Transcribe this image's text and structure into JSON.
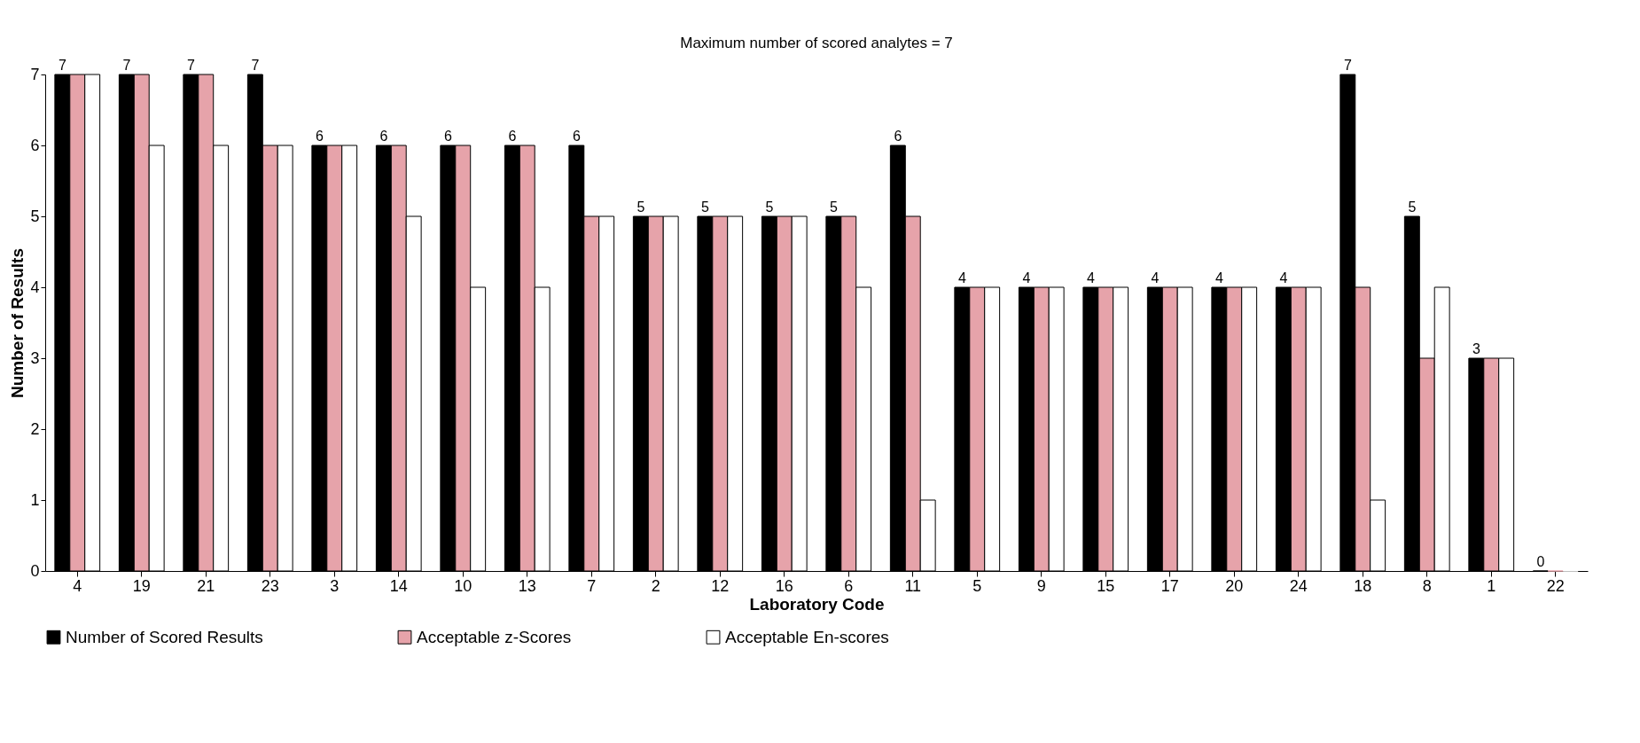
{
  "chart_data": {
    "type": "bar",
    "xlabel": "Laboratory Code",
    "ylabel": "Number of Results",
    "annotations": [
      "Maximum number of scored analytes = 7"
    ],
    "categories": [
      "4",
      "19",
      "21",
      "23",
      "3",
      "14",
      "10",
      "13",
      "7",
      "2",
      "12",
      "16",
      "6",
      "11",
      "5",
      "9",
      "15",
      "17",
      "20",
      "24",
      "18",
      "8",
      "1",
      "22"
    ],
    "series": [
      {
        "name": "Number of Scored Results",
        "color": "#000000",
        "values": [
          7,
          7,
          7,
          7,
          6,
          6,
          6,
          6,
          6,
          5,
          5,
          5,
          5,
          6,
          4,
          4,
          4,
          4,
          4,
          4,
          7,
          5,
          3,
          0
        ],
        "value_labels": [
          "7",
          "7",
          "7",
          "7",
          "6",
          "6",
          "6",
          "6",
          "6",
          "5",
          "5",
          "5",
          "5",
          "6",
          "4",
          "4",
          "4",
          "4",
          "4",
          "4",
          "7",
          "5",
          "3",
          "0"
        ]
      },
      {
        "name": "Acceptable z-Scores",
        "color": "#e6a3aa",
        "values": [
          7,
          7,
          7,
          6,
          6,
          6,
          6,
          6,
          5,
          5,
          5,
          5,
          5,
          5,
          4,
          4,
          4,
          4,
          4,
          4,
          4,
          3,
          3,
          0
        ]
      },
      {
        "name": "Acceptable En-scores",
        "color": "#ffffff",
        "values": [
          7,
          6,
          6,
          6,
          6,
          5,
          4,
          4,
          5,
          5,
          5,
          5,
          4,
          1,
          4,
          4,
          4,
          4,
          4,
          4,
          1,
          4,
          3,
          0
        ]
      }
    ],
    "ylim": [
      0,
      7
    ],
    "yticks": [
      0,
      1,
      2,
      3,
      4,
      5,
      6,
      7
    ],
    "grid": false,
    "legend": "bottom"
  }
}
